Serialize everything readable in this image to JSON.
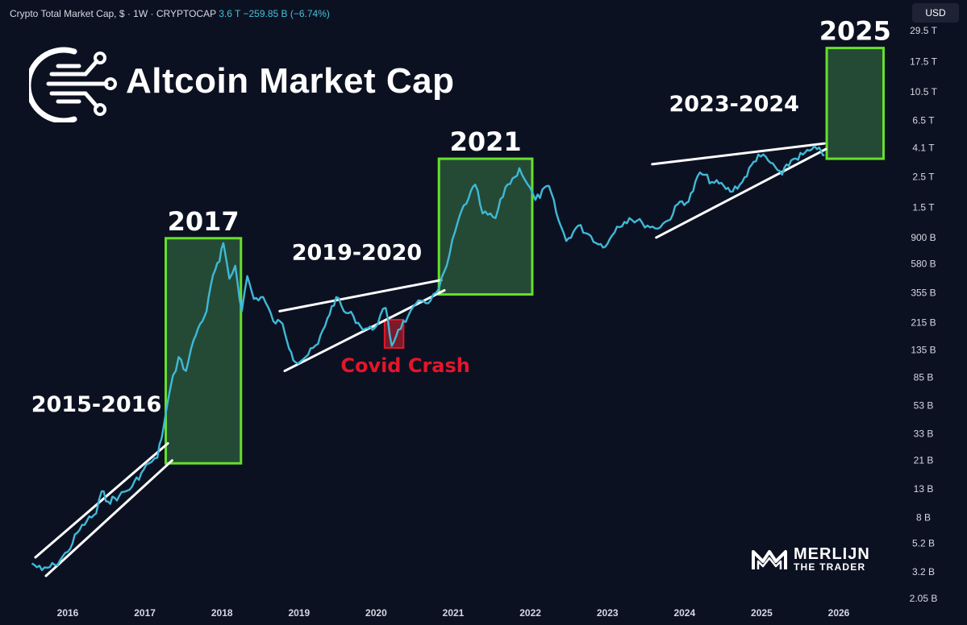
{
  "header": {
    "title": "Crypto Total Market Cap, $ · 1W · CRYPTOCAP",
    "value": "3.6 T",
    "change": "−259.85 B (−6.74%)"
  },
  "currency_button": "USD",
  "logo": {
    "text": "Altcoin Market Cap"
  },
  "watermark": {
    "line1": "MERLIJN",
    "line2": "THE TRADER"
  },
  "colors": {
    "background": "#0c1122",
    "line": "#3fb9d6",
    "box_fill": "#244a36",
    "box_border": "#66e02c",
    "covid": "#e3162a",
    "trendline": "#ffffff"
  },
  "chart_data": {
    "type": "line",
    "title": "Crypto Total Market Cap, $ · 1W · CRYPTOCAP",
    "y_scale": "log",
    "ylim_B": [
      2.05,
      29500
    ],
    "x_tick_labels": [
      "2016",
      "2017",
      "2018",
      "2019",
      "2020",
      "2021",
      "2022",
      "2023",
      "2024",
      "2025",
      "2026"
    ],
    "y_tick_labels": [
      {
        "label": "29.5 T",
        "value_B": 29500
      },
      {
        "label": "17.5 T",
        "value_B": 17500
      },
      {
        "label": "10.5 T",
        "value_B": 10500
      },
      {
        "label": "6.5 T",
        "value_B": 6500
      },
      {
        "label": "4.1 T",
        "value_B": 4100
      },
      {
        "label": "2.5 T",
        "value_B": 2500
      },
      {
        "label": "1.5 T",
        "value_B": 1500
      },
      {
        "label": "900 B",
        "value_B": 900
      },
      {
        "label": "580 B",
        "value_B": 580
      },
      {
        "label": "355 B",
        "value_B": 355
      },
      {
        "label": "215 B",
        "value_B": 215
      },
      {
        "label": "135 B",
        "value_B": 135
      },
      {
        "label": "85 B",
        "value_B": 85
      },
      {
        "label": "53 B",
        "value_B": 53
      },
      {
        "label": "33 B",
        "value_B": 33
      },
      {
        "label": "21 B",
        "value_B": 21
      },
      {
        "label": "13 B",
        "value_B": 13
      },
      {
        "label": "8 B",
        "value_B": 8
      },
      {
        "label": "5.2 B",
        "value_B": 5.2
      },
      {
        "label": "3.2 B",
        "value_B": 3.2
      },
      {
        "label": "2.05 B",
        "value_B": 2.05
      }
    ],
    "series": [
      {
        "unit": "B",
        "points": [
          [
            "2015-07-15",
            3.7
          ],
          [
            "2015-09-01",
            3.3
          ],
          [
            "2015-11-01",
            3.6
          ],
          [
            "2016-01-01",
            4.5
          ],
          [
            "2016-02-15",
            6.2
          ],
          [
            "2016-04-01",
            7.6
          ],
          [
            "2016-05-15",
            8.6
          ],
          [
            "2016-06-10",
            12.5
          ],
          [
            "2016-07-10",
            10.5
          ],
          [
            "2016-09-01",
            11.5
          ],
          [
            "2016-11-01",
            13.5
          ],
          [
            "2016-12-15",
            17
          ],
          [
            "2017-01-20",
            20
          ],
          [
            "2017-03-01",
            22
          ],
          [
            "2017-04-01",
            38
          ],
          [
            "2017-05-01",
            70
          ],
          [
            "2017-06-10",
            120
          ],
          [
            "2017-07-15",
            95
          ],
          [
            "2017-08-20",
            160
          ],
          [
            "2017-09-20",
            210
          ],
          [
            "2017-10-20",
            260
          ],
          [
            "2017-11-20",
            480
          ],
          [
            "2017-12-20",
            600
          ],
          [
            "2018-01-08",
            820
          ],
          [
            "2018-02-05",
            450
          ],
          [
            "2018-03-05",
            560
          ],
          [
            "2018-04-05",
            260
          ],
          [
            "2018-05-01",
            470
          ],
          [
            "2018-06-01",
            320
          ],
          [
            "2018-07-15",
            330
          ],
          [
            "2018-09-01",
            220
          ],
          [
            "2018-10-15",
            210
          ],
          [
            "2018-11-25",
            130
          ],
          [
            "2018-12-15",
            110
          ],
          [
            "2019-02-01",
            120
          ],
          [
            "2019-04-01",
            150
          ],
          [
            "2019-05-15",
            230
          ],
          [
            "2019-06-26",
            330
          ],
          [
            "2019-08-01",
            260
          ],
          [
            "2019-09-15",
            240
          ],
          [
            "2019-10-20",
            200
          ],
          [
            "2019-12-15",
            190
          ],
          [
            "2020-02-15",
            275
          ],
          [
            "2020-03-15",
            145
          ],
          [
            "2020-04-15",
            190
          ],
          [
            "2020-06-01",
            240
          ],
          [
            "2020-08-01",
            310
          ],
          [
            "2020-09-15",
            310
          ],
          [
            "2020-10-25",
            380
          ],
          [
            "2020-12-01",
            560
          ],
          [
            "2021-01-10",
            1000
          ],
          [
            "2021-02-20",
            1550
          ],
          [
            "2021-03-15",
            1750
          ],
          [
            "2021-04-15",
            2200
          ],
          [
            "2021-05-20",
            1350
          ],
          [
            "2021-07-20",
            1250
          ],
          [
            "2021-09-05",
            2100
          ],
          [
            "2021-10-20",
            2500
          ],
          [
            "2021-11-10",
            2900
          ],
          [
            "2021-12-20",
            2200
          ],
          [
            "2022-01-25",
            1700
          ],
          [
            "2022-03-30",
            2150
          ],
          [
            "2022-05-15",
            1200
          ],
          [
            "2022-06-20",
            850
          ],
          [
            "2022-08-15",
            1100
          ],
          [
            "2022-10-15",
            920
          ],
          [
            "2022-11-20",
            800
          ],
          [
            "2023-01-01",
            810
          ],
          [
            "2023-02-15",
            1080
          ],
          [
            "2023-04-15",
            1250
          ],
          [
            "2023-06-15",
            1150
          ],
          [
            "2023-08-15",
            1050
          ],
          [
            "2023-10-15",
            1200
          ],
          [
            "2023-12-10",
            1650
          ],
          [
            "2024-01-20",
            1650
          ],
          [
            "2024-03-14",
            2700
          ],
          [
            "2024-05-10",
            2300
          ],
          [
            "2024-07-05",
            2150
          ],
          [
            "2024-08-05",
            1950
          ],
          [
            "2024-10-01",
            2300
          ],
          [
            "2024-12-16",
            3650
          ],
          [
            "2025-02-01",
            3300
          ],
          [
            "2025-04-08",
            2600
          ],
          [
            "2025-05-20",
            3300
          ],
          [
            "2025-07-15",
            3650
          ],
          [
            "2025-08-15",
            3900
          ],
          [
            "2025-09-20",
            4000
          ],
          [
            "2025-10-10",
            3850
          ],
          [
            "2025-10-25",
            3600
          ]
        ]
      }
    ],
    "annotations": [
      {
        "label": "2015-2016",
        "x_range": [
          "2015-07-15",
          "2017-04-15"
        ],
        "kind": "channel"
      },
      {
        "label": "2017",
        "x_range": [
          "2017-04-10",
          "2018-04-01"
        ],
        "y_range_B": [
          20,
          890
        ],
        "kind": "box"
      },
      {
        "label": "2019-2020",
        "x_range": [
          "2018-10-15",
          "2020-11-15"
        ],
        "kind": "channel"
      },
      {
        "label": "Covid Crash",
        "x_range": [
          "2020-02-10",
          "2020-05-10"
        ],
        "y_range_B": [
          140,
          225
        ],
        "kind": "marker"
      },
      {
        "label": "2021",
        "x_range": [
          "2020-10-25",
          "2022-01-10"
        ],
        "y_range_B": [
          345,
          3400
        ],
        "kind": "box"
      },
      {
        "label": "2023-2024",
        "x_range": [
          "2023-08-01",
          "2025-10-25"
        ],
        "kind": "channel"
      },
      {
        "label": "2025",
        "x_range": [
          "2025-11-05",
          "2026-08-01"
        ],
        "y_range_B": [
          3400,
          22000
        ],
        "kind": "box"
      }
    ]
  }
}
